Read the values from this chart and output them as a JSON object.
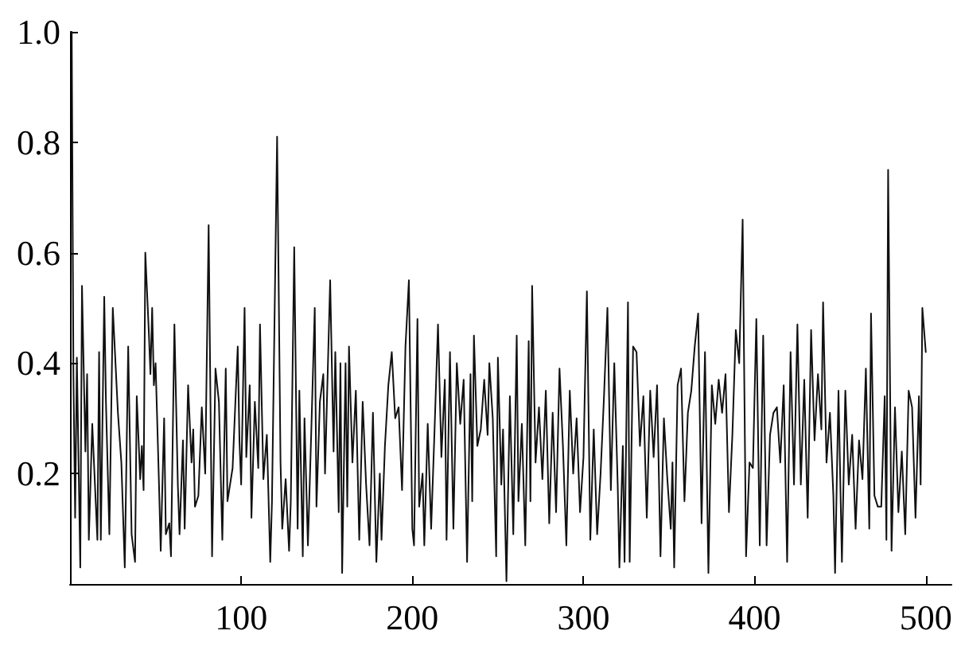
{
  "chart_data": {
    "type": "line",
    "marker": "none",
    "line_style": "solid",
    "grid": false,
    "xlim": [
      0,
      515
    ],
    "xticks": [
      100,
      200,
      300,
      400,
      500
    ],
    "ylim": [
      0,
      1.0
    ],
    "yticks": [
      0.2,
      0.4,
      0.6,
      0.8,
      {
        "value": 1,
        "label": "1.0"
      }
    ],
    "x": [
      1,
      2,
      3,
      4,
      6,
      7,
      9,
      10,
      11,
      13,
      16,
      17,
      18,
      20,
      21,
      23,
      25,
      28,
      30,
      32,
      34,
      36,
      38,
      39,
      41,
      42,
      43,
      44,
      46,
      47,
      48,
      49,
      50,
      52,
      53,
      55,
      56,
      58,
      59,
      61,
      63,
      64,
      66,
      67,
      69,
      71,
      72,
      73,
      75,
      77,
      79,
      81,
      83,
      85,
      87,
      89,
      91,
      92,
      95,
      98,
      99,
      100,
      102,
      103,
      105,
      106,
      108,
      110,
      111,
      113,
      115,
      117,
      118,
      121,
      123,
      124,
      126,
      128,
      129,
      131,
      133,
      134,
      136,
      137,
      139,
      141,
      143,
      144,
      146,
      148,
      149,
      152,
      154,
      155,
      157,
      158,
      159,
      161,
      162,
      163,
      165,
      167,
      169,
      171,
      173,
      175,
      177,
      179,
      181,
      182,
      184,
      186,
      188,
      190,
      192,
      194,
      196,
      198,
      200,
      201,
      203,
      204,
      206,
      207,
      209,
      211,
      213,
      215,
      217,
      219,
      220,
      222,
      224,
      226,
      228,
      230,
      232,
      234,
      235,
      236,
      238,
      240,
      242,
      244,
      245,
      247,
      249,
      250,
      252,
      253,
      255,
      257,
      259,
      261,
      262,
      264,
      266,
      268,
      269,
      270,
      272,
      274,
      276,
      278,
      280,
      282,
      284,
      286,
      288,
      290,
      292,
      294,
      296,
      298,
      300,
      302,
      304,
      306,
      308,
      310,
      312,
      314,
      316,
      318,
      320,
      321,
      323,
      324,
      326,
      327,
      329,
      331,
      333,
      335,
      337,
      339,
      341,
      343,
      345,
      347,
      349,
      351,
      352,
      353,
      355,
      357,
      359,
      361,
      363,
      365,
      367,
      369,
      371,
      373,
      375,
      377,
      379,
      381,
      383,
      385,
      387,
      389,
      391,
      393,
      395,
      397,
      399,
      401,
      403,
      405,
      407,
      409,
      411,
      413,
      415,
      417,
      419,
      421,
      423,
      425,
      427,
      429,
      431,
      433,
      435,
      437,
      439,
      440,
      442,
      444,
      446,
      447,
      449,
      451,
      453,
      455,
      457,
      459,
      461,
      463,
      465,
      467,
      468,
      470,
      472,
      474,
      476,
      477,
      478,
      480,
      482,
      484,
      486,
      488,
      490,
      492,
      494,
      496,
      497,
      498,
      500
    ],
    "series": [
      {
        "color": "#111111",
        "values": [
          1.0,
          0.38,
          0.12,
          0.41,
          0.03,
          0.54,
          0.24,
          0.38,
          0.08,
          0.29,
          0.08,
          0.42,
          0.08,
          0.52,
          0.33,
          0.09,
          0.5,
          0.31,
          0.22,
          0.03,
          0.43,
          0.09,
          0.04,
          0.34,
          0.19,
          0.25,
          0.17,
          0.6,
          0.46,
          0.38,
          0.5,
          0.36,
          0.4,
          0.18,
          0.06,
          0.3,
          0.09,
          0.11,
          0.05,
          0.47,
          0.18,
          0.09,
          0.26,
          0.1,
          0.36,
          0.22,
          0.28,
          0.14,
          0.16,
          0.32,
          0.2,
          0.65,
          0.05,
          0.39,
          0.33,
          0.08,
          0.39,
          0.15,
          0.21,
          0.43,
          0.26,
          0.18,
          0.5,
          0.23,
          0.36,
          0.12,
          0.33,
          0.21,
          0.47,
          0.19,
          0.27,
          0.04,
          0.15,
          0.81,
          0.22,
          0.1,
          0.19,
          0.06,
          0.15,
          0.61,
          0.1,
          0.35,
          0.05,
          0.3,
          0.07,
          0.28,
          0.5,
          0.14,
          0.33,
          0.38,
          0.2,
          0.55,
          0.24,
          0.42,
          0.13,
          0.4,
          0.02,
          0.4,
          0.14,
          0.43,
          0.22,
          0.35,
          0.08,
          0.33,
          0.18,
          0.07,
          0.31,
          0.04,
          0.2,
          0.08,
          0.25,
          0.36,
          0.42,
          0.3,
          0.32,
          0.17,
          0.43,
          0.55,
          0.1,
          0.07,
          0.48,
          0.14,
          0.2,
          0.07,
          0.29,
          0.1,
          0.28,
          0.47,
          0.23,
          0.37,
          0.08,
          0.42,
          0.1,
          0.4,
          0.29,
          0.37,
          0.04,
          0.38,
          0.15,
          0.45,
          0.25,
          0.28,
          0.37,
          0.27,
          0.4,
          0.3,
          0.05,
          0.41,
          0.18,
          0.28,
          0.005,
          0.34,
          0.09,
          0.45,
          0.15,
          0.29,
          0.07,
          0.44,
          0.15,
          0.54,
          0.22,
          0.32,
          0.19,
          0.35,
          0.11,
          0.31,
          0.13,
          0.39,
          0.25,
          0.07,
          0.35,
          0.2,
          0.3,
          0.13,
          0.23,
          0.53,
          0.08,
          0.28,
          0.09,
          0.2,
          0.34,
          0.5,
          0.17,
          0.4,
          0.18,
          0.03,
          0.25,
          0.04,
          0.51,
          0.04,
          0.43,
          0.42,
          0.25,
          0.34,
          0.12,
          0.35,
          0.23,
          0.36,
          0.05,
          0.3,
          0.19,
          0.1,
          0.22,
          0.03,
          0.36,
          0.39,
          0.15,
          0.31,
          0.35,
          0.43,
          0.49,
          0.11,
          0.42,
          0.02,
          0.36,
          0.29,
          0.37,
          0.31,
          0.38,
          0.13,
          0.27,
          0.46,
          0.4,
          0.66,
          0.05,
          0.22,
          0.21,
          0.48,
          0.07,
          0.45,
          0.07,
          0.27,
          0.31,
          0.32,
          0.22,
          0.36,
          0.04,
          0.42,
          0.18,
          0.47,
          0.18,
          0.37,
          0.12,
          0.46,
          0.26,
          0.38,
          0.28,
          0.51,
          0.22,
          0.31,
          0.16,
          0.02,
          0.35,
          0.04,
          0.35,
          0.18,
          0.27,
          0.1,
          0.26,
          0.19,
          0.39,
          0.1,
          0.49,
          0.16,
          0.14,
          0.14,
          0.34,
          0.08,
          0.75,
          0.06,
          0.32,
          0.13,
          0.24,
          0.09,
          0.35,
          0.32,
          0.12,
          0.34,
          0.18,
          0.5,
          0.42
        ]
      }
    ]
  }
}
